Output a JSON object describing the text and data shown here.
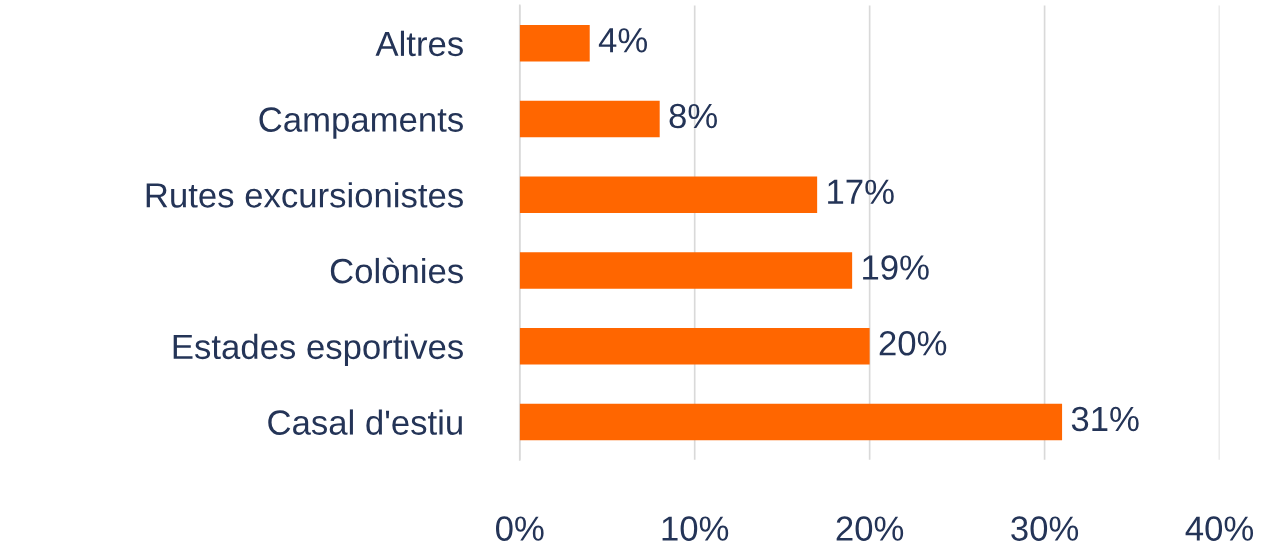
{
  "chart_data": {
    "type": "bar",
    "orientation": "horizontal",
    "categories": [
      "Altres",
      "Campaments",
      "Rutes excursionistes",
      "Colònies",
      "Estades esportives",
      "Casal d'estiu"
    ],
    "values": [
      4,
      8,
      17,
      19,
      20,
      31
    ],
    "value_labels": [
      "4%",
      "8%",
      "17%",
      "19%",
      "20%",
      "31%"
    ],
    "color": "#ff6600",
    "xlim": [
      0,
      40
    ],
    "xticks": [
      {
        "value": 0,
        "label": "0%"
      },
      {
        "value": 10,
        "label": "10%"
      },
      {
        "value": 20,
        "label": "20%"
      },
      {
        "value": 30,
        "label": "30%"
      },
      {
        "value": 40,
        "label": "40%"
      }
    ],
    "grid": "x",
    "legend": false
  }
}
